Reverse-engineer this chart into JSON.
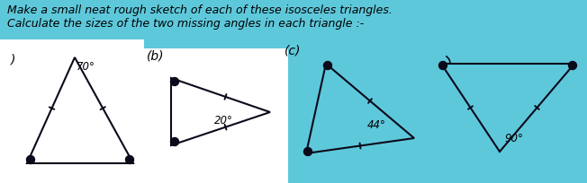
{
  "bg_color": "#5ec8db",
  "title_line1": "Make a small neat rough sketch of each of these isosceles triangles.",
  "title_line2": "Calculate the sizes of the two missing angles in each triangle :-",
  "title_fontsize": 9.0,
  "title_color": "#000000",
  "label_a": ")",
  "label_b": "(b)",
  "label_c": "(c)",
  "angle_a": "70°",
  "angle_b": "20°",
  "angle_c": "44°",
  "angle_d": "90°",
  "triangle_color": "#0a0a1a",
  "white_bg_a": [
    0,
    45,
    165,
    205
  ],
  "white_bg_b": [
    155,
    45,
    320,
    205
  ]
}
